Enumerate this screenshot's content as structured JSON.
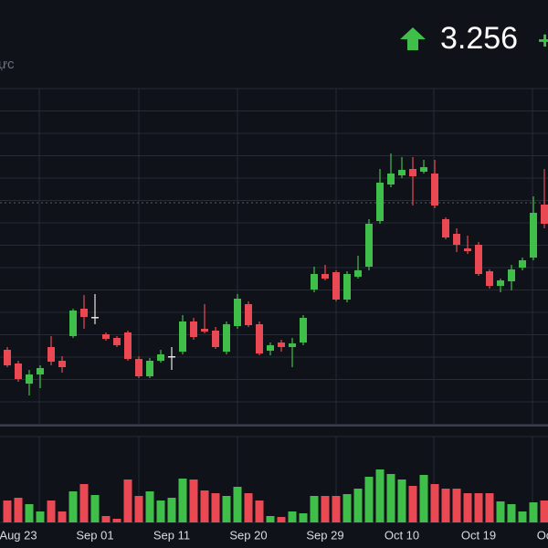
{
  "chart_data": {
    "type": "candlestick",
    "price": "3.256",
    "last_price": 3.256,
    "title_fragment": "ực",
    "change_fragment": "+",
    "up_color": "#3fbf4a",
    "down_color": "#ea4852",
    "categories": [
      null,
      "Aug 23",
      null,
      null,
      null,
      null,
      null,
      null,
      "Sep 01",
      null,
      null,
      null,
      null,
      null,
      null,
      "Sep 11",
      null,
      null,
      null,
      null,
      null,
      null,
      "Sep 20",
      null,
      null,
      null,
      null,
      null,
      null,
      "Sep 29",
      null,
      null,
      null,
      null,
      null,
      null,
      "Oct 10",
      null,
      null,
      null,
      null,
      null,
      null,
      "Oct 19",
      null,
      null,
      null,
      null,
      null,
      "Oc"
    ],
    "open": [
      2.934,
      2.904,
      2.86,
      2.88,
      2.94,
      2.91,
      2.964,
      3.024,
      3.006,
      2.968,
      2.96,
      2.972,
      2.914,
      2.876,
      2.91,
      2.92,
      2.93,
      2.996,
      2.98,
      2.976,
      2.93,
      2.986,
      3.034,
      2.99,
      2.932,
      2.95,
      2.94,
      2.95,
      3.066,
      3.1,
      3.104,
      3.044,
      3.094,
      3.116,
      3.216,
      3.296,
      3.316,
      3.33,
      3.324,
      3.32,
      3.22,
      3.188,
      3.156,
      3.164,
      3.106,
      3.074,
      3.084,
      3.114,
      3.136,
      3.252
    ],
    "high": [
      2.94,
      2.91,
      2.89,
      2.9,
      2.964,
      2.92,
      3.024,
      3.054,
      3.056,
      2.972,
      2.964,
      2.976,
      2.92,
      2.916,
      2.934,
      2.94,
      3.01,
      3.004,
      3.034,
      2.984,
      2.996,
      3.056,
      3.04,
      2.996,
      2.95,
      2.956,
      2.96,
      3.01,
      3.116,
      3.12,
      3.108,
      3.106,
      3.14,
      3.22,
      3.33,
      3.364,
      3.356,
      3.356,
      3.35,
      3.35,
      3.224,
      3.2,
      3.184,
      3.17,
      3.11,
      3.09,
      3.12,
      3.136,
      3.27,
      3.33
    ],
    "low": [
      2.896,
      2.864,
      2.834,
      2.85,
      2.9,
      2.884,
      2.96,
      2.98,
      2.99,
      2.954,
      2.94,
      2.91,
      2.872,
      2.872,
      2.906,
      2.89,
      2.924,
      2.956,
      2.97,
      2.936,
      2.924,
      2.98,
      2.984,
      2.922,
      2.922,
      2.93,
      2.896,
      2.944,
      3.06,
      3.086,
      3.04,
      3.038,
      3.09,
      3.108,
      3.21,
      3.29,
      3.31,
      3.25,
      3.32,
      3.244,
      3.176,
      3.148,
      3.144,
      3.096,
      3.068,
      3.06,
      3.064,
      3.108,
      3.13,
      3.2
    ],
    "close": [
      2.9,
      2.87,
      2.88,
      2.894,
      2.908,
      2.896,
      3.02,
      3.006,
      3.006,
      2.958,
      2.944,
      2.914,
      2.876,
      2.91,
      2.924,
      2.92,
      2.996,
      2.962,
      2.974,
      2.94,
      2.99,
      3.046,
      2.988,
      2.926,
      2.944,
      2.94,
      2.948,
      3.004,
      3.1,
      3.09,
      3.044,
      3.1,
      3.108,
      3.21,
      3.3,
      3.32,
      3.328,
      3.314,
      3.334,
      3.25,
      3.18,
      3.164,
      3.15,
      3.1,
      3.074,
      3.086,
      3.11,
      3.13,
      3.234,
      3.21
    ],
    "volume": [
      24,
      27,
      20,
      12,
      24,
      12,
      34,
      42,
      30,
      7,
      4,
      47,
      29,
      34,
      24,
      27,
      48,
      47,
      35,
      32,
      29,
      39,
      32,
      24,
      7,
      6,
      12,
      10,
      29,
      29,
      29,
      31,
      37,
      50,
      58,
      53,
      47,
      40,
      52,
      42,
      37,
      37,
      32,
      32,
      32,
      23,
      20,
      12,
      22,
      24
    ],
    "ylim": [
      2.77,
      3.506
    ],
    "vlim": [
      0,
      94
    ]
  }
}
